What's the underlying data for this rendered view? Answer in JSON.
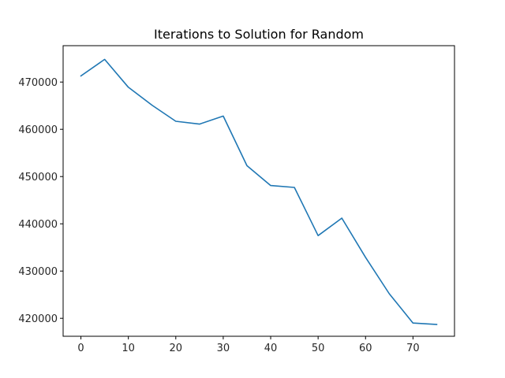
{
  "chart_data": {
    "type": "line",
    "title": "Iterations to Solution for Random",
    "xlabel": "",
    "ylabel": "",
    "xlim": [
      -3.75,
      78.75
    ],
    "ylim": [
      416200,
      477700
    ],
    "x_ticks": [
      0,
      10,
      20,
      30,
      40,
      50,
      60,
      70
    ],
    "y_ticks": [
      420000,
      430000,
      440000,
      450000,
      460000,
      470000
    ],
    "grid": false,
    "colors": {
      "line": "#1f77b4",
      "axis": "#000000",
      "text": "#262626"
    },
    "series": [
      {
        "x": [
          0,
          5,
          10,
          15,
          20,
          25,
          30,
          35,
          40,
          45,
          50,
          55,
          60,
          65,
          70,
          75
        ],
        "y": [
          471300,
          474800,
          468900,
          465100,
          461700,
          461100,
          462800,
          452300,
          448100,
          447700,
          437500,
          441200,
          432900,
          425200,
          419000,
          418700
        ]
      }
    ]
  }
}
